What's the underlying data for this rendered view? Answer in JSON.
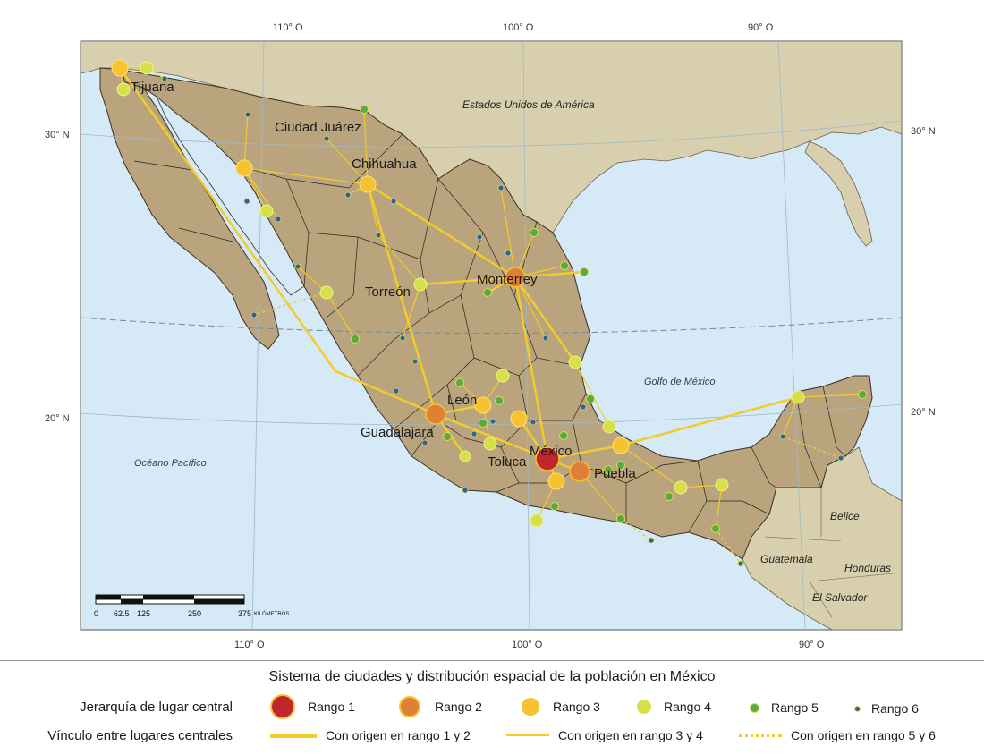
{
  "map": {
    "lon_labels_top": [
      "110° O",
      "100° O",
      "90° O"
    ],
    "lon_labels_bottom": [
      "110° O",
      "100° O",
      "90° O"
    ],
    "lat_labels_left": [
      "30° N",
      "20° N"
    ],
    "lat_labels_right": [
      "30° N",
      "20° N"
    ],
    "countries": {
      "usa": "Estados Unidos de América",
      "guatemala": "Guatemala",
      "belice": "Belice",
      "honduras": "Honduras",
      "el_salvador": "El Salvador"
    },
    "seas": {
      "pacific": "Océano Pacífico",
      "gulf": "Golfo  de  México"
    },
    "cities": {
      "tijuana": "Tijuana",
      "ciudad_juarez": "Ciudad Juárez",
      "chihuahua": "Chihuahua",
      "torreon": "Torreón",
      "monterrey": "Monterrey",
      "leon": "León",
      "guadalajara": "Guadalajara",
      "mexico": "México",
      "toluca": "Toluca",
      "puebla": "Puebla"
    },
    "scale": {
      "ticks": [
        "0",
        "62.5",
        "125",
        "250",
        "375"
      ],
      "unit": "KILÓMETROS"
    },
    "colors": {
      "ocean": "#d5e9f6",
      "land_mexico": "#b9a47e",
      "land_other": "#d8cfae",
      "rango1": "#c0272d",
      "rango2": "#df8037",
      "rango3": "#f6c22f",
      "rango4": "#d7e04a",
      "rango5": "#5aa846",
      "rango6": "#2f5fa4",
      "link": "#f2cc2a"
    }
  },
  "legend": {
    "title": "Sistema de ciudades y distribución espacial de la población en México",
    "hierarchy_label": "Jerarquía de lugar central",
    "ranks": [
      "Rango 1",
      "Rango 2",
      "Rango 3",
      "Rango 4",
      "Rango 5",
      "Rango 6"
    ],
    "links_label": "Vínculo entre lugares centrales",
    "links": [
      "Con origen en rango 1 y 2",
      "Con origen en rango 3 y 4",
      "Con origen en rango 5 y 6"
    ]
  }
}
